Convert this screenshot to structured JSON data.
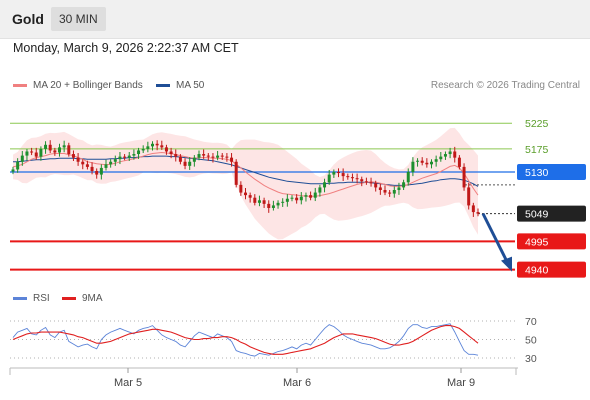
{
  "header": {
    "instrument": "Gold",
    "timeframe": "30 MIN",
    "datetime": "Monday, March 9, 2026 2:22:37 AM CET"
  },
  "legend": {
    "ma20": "MA 20 + Bollinger Bands",
    "ma50": "MA 50",
    "copyright": "Research © 2026 Trading Central",
    "rsi": "RSI",
    "ma9": "9MA"
  },
  "colors": {
    "ma20": "#f08080",
    "ma50": "#1f4e96",
    "band_fill": "#fde0e0",
    "up": "#1e8f2e",
    "down": "#c01818",
    "pivot": "#1e6ee8",
    "support": "#e81818",
    "resistance": "#8cc850",
    "arrow": "#1f4e96",
    "rsi": "#5c84d8",
    "rsi_ma": "#e02020"
  },
  "chart_data": [
    {
      "type": "candlestick",
      "title": "Gold",
      "ylim": [
        4910,
        5280
      ],
      "x_ticks": [
        "Mar 5",
        "Mar 6",
        "Mar 9"
      ],
      "y_levels": [
        {
          "label": "5225",
          "value": 5225,
          "kind": "resistance"
        },
        {
          "label": "5175",
          "value": 5175,
          "kind": "resistance"
        },
        {
          "label": "5130",
          "value": 5130,
          "kind": "pivot"
        },
        {
          "label": "5049",
          "value": 5049,
          "kind": "last"
        },
        {
          "label": "4995",
          "value": 4995,
          "kind": "support"
        },
        {
          "label": "4940",
          "value": 4940,
          "kind": "support"
        }
      ],
      "close_series": [
        5135,
        5150,
        5162,
        5170,
        5168,
        5160,
        5175,
        5183,
        5172,
        5168,
        5178,
        5182,
        5165,
        5158,
        5150,
        5145,
        5140,
        5132,
        5125,
        5138,
        5145,
        5150,
        5155,
        5160,
        5158,
        5162,
        5165,
        5172,
        5175,
        5180,
        5185,
        5182,
        5178,
        5170,
        5165,
        5160,
        5150,
        5142,
        5150,
        5158,
        5165,
        5162,
        5160,
        5158,
        5162,
        5160,
        5158,
        5150,
        5105,
        5090,
        5085,
        5080,
        5070,
        5075,
        5068,
        5060,
        5065,
        5070,
        5072,
        5078,
        5080,
        5075,
        5082,
        5085,
        5080,
        5090,
        5100,
        5110,
        5125,
        5130,
        5128,
        5122,
        5120,
        5118,
        5116,
        5112,
        5110,
        5108,
        5100,
        5095,
        5090,
        5088,
        5095,
        5100,
        5110,
        5130,
        5150,
        5152,
        5148,
        5145,
        5150,
        5155,
        5160,
        5165,
        5170,
        5158,
        5140,
        5100,
        5065,
        5052,
        5049
      ],
      "ma20_series": [
        5140,
        5142,
        5145,
        5150,
        5155,
        5158,
        5160,
        5162,
        5165,
        5166,
        5166,
        5166,
        5164,
        5162,
        5158,
        5155,
        5150,
        5148,
        5146,
        5145,
        5144,
        5145,
        5147,
        5150,
        5152,
        5154,
        5156,
        5158,
        5161,
        5164,
        5166,
        5167,
        5168,
        5167,
        5166,
        5164,
        5162,
        5160,
        5158,
        5157,
        5158,
        5158,
        5158,
        5157,
        5157,
        5156,
        5155,
        5152,
        5145,
        5138,
        5130,
        5123,
        5116,
        5110,
        5104,
        5099,
        5095,
        5091,
        5088,
        5087,
        5086,
        5085,
        5084,
        5083,
        5083,
        5083,
        5084,
        5086,
        5088,
        5091,
        5094,
        5097,
        5100,
        5103,
        5106,
        5108,
        5110,
        5111,
        5110,
        5108,
        5106,
        5103,
        5102,
        5102,
        5103,
        5106,
        5110,
        5114,
        5118,
        5121,
        5124,
        5127,
        5131,
        5136,
        5141,
        5143,
        5138,
        5127,
        5113,
        5098,
        5085
      ],
      "ma50_series": [
        5150,
        5150,
        5151,
        5152,
        5153,
        5154,
        5154,
        5155,
        5156,
        5156,
        5157,
        5157,
        5157,
        5157,
        5156,
        5156,
        5155,
        5155,
        5155,
        5155,
        5155,
        5156,
        5156,
        5157,
        5157,
        5158,
        5158,
        5159,
        5160,
        5160,
        5161,
        5161,
        5161,
        5161,
        5160,
        5160,
        5159,
        5158,
        5157,
        5156,
        5155,
        5154,
        5153,
        5152,
        5150,
        5148,
        5146,
        5144,
        5141,
        5138,
        5135,
        5132,
        5129,
        5126,
        5123,
        5120,
        5118,
        5116,
        5114,
        5112,
        5111,
        5110,
        5109,
        5108,
        5107,
        5107,
        5107,
        5107,
        5108,
        5108,
        5109,
        5109,
        5110,
        5110,
        5110,
        5110,
        5110,
        5109,
        5108,
        5107,
        5106,
        5105,
        5104,
        5104,
        5104,
        5105,
        5106,
        5107,
        5108,
        5110,
        5112,
        5113,
        5115,
        5116,
        5117,
        5117,
        5116,
        5114,
        5111,
        5107,
        5102
      ]
    },
    {
      "type": "line",
      "title": "RSI",
      "ylim": [
        30,
        70
      ],
      "y_ticks": [
        "70",
        "50",
        "30"
      ],
      "series": [
        {
          "name": "RSI",
          "values": [
            52,
            58,
            60,
            62,
            56,
            55,
            60,
            63,
            55,
            52,
            58,
            60,
            48,
            45,
            42,
            44,
            45,
            42,
            40,
            50,
            55,
            58,
            60,
            62,
            60,
            58,
            56,
            60,
            62,
            63,
            65,
            60,
            55,
            52,
            50,
            48,
            44,
            42,
            48,
            54,
            58,
            56,
            54,
            52,
            56,
            54,
            52,
            48,
            38,
            36,
            35,
            33,
            32,
            35,
            34,
            33,
            35,
            37,
            38,
            40,
            42,
            40,
            44,
            46,
            44,
            50,
            56,
            62,
            66,
            64,
            60,
            55,
            52,
            50,
            48,
            46,
            45,
            44,
            42,
            40,
            40,
            41,
            44,
            48,
            54,
            62,
            66,
            66,
            63,
            62,
            64,
            64,
            65,
            66,
            67,
            58,
            48,
            38,
            34,
            34,
            33
          ]
        },
        {
          "name": "9MA",
          "values": [
            50,
            52,
            54,
            56,
            57,
            57,
            58,
            58,
            58,
            58,
            58,
            57,
            56,
            55,
            53,
            52,
            50,
            48,
            46,
            46,
            47,
            48,
            50,
            52,
            54,
            56,
            57,
            58,
            59,
            60,
            61,
            61,
            60,
            59,
            58,
            56,
            54,
            52,
            51,
            50,
            50,
            51,
            51,
            52,
            52,
            53,
            53,
            52,
            50,
            47,
            45,
            42,
            40,
            38,
            36,
            35,
            34,
            34,
            34,
            35,
            36,
            37,
            38,
            39,
            40,
            42,
            44,
            46,
            49,
            52,
            54,
            56,
            56,
            56,
            55,
            54,
            53,
            52,
            51,
            49,
            47,
            45,
            44,
            44,
            45,
            46,
            48,
            51,
            54,
            57,
            60,
            62,
            64,
            65,
            65,
            64,
            62,
            58,
            54,
            50,
            46
          ]
        }
      ]
    }
  ]
}
